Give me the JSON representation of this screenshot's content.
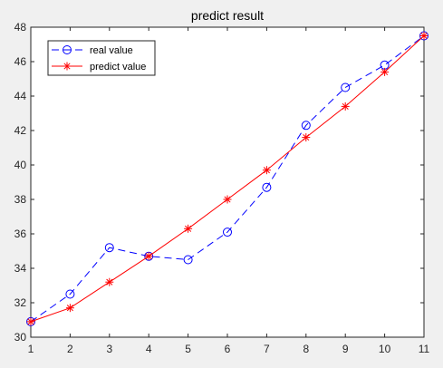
{
  "chart_data": {
    "type": "line",
    "title": "predict result",
    "xlabel": "",
    "ylabel": "",
    "xlim": [
      1,
      11
    ],
    "ylim": [
      30,
      48
    ],
    "xticks": [
      1,
      2,
      3,
      4,
      5,
      6,
      7,
      8,
      9,
      10,
      11
    ],
    "yticks": [
      30,
      32,
      34,
      36,
      38,
      40,
      42,
      44,
      46,
      48
    ],
    "x": [
      1,
      2,
      3,
      4,
      5,
      6,
      7,
      8,
      9,
      10,
      11
    ],
    "grid": false,
    "legend_position": "top-left",
    "series": [
      {
        "name": "real value",
        "values": [
          30.9,
          32.5,
          35.2,
          34.7,
          34.5,
          36.1,
          38.7,
          42.3,
          44.5,
          45.8,
          47.5
        ],
        "color": "#0000ff",
        "line_style": "dashed",
        "marker": "circle"
      },
      {
        "name": "predict value",
        "values": [
          30.9,
          31.7,
          33.2,
          34.7,
          36.3,
          38.0,
          39.7,
          41.6,
          43.4,
          45.4,
          47.5
        ],
        "color": "#ff0000",
        "line_style": "solid",
        "marker": "asterisk"
      }
    ]
  }
}
